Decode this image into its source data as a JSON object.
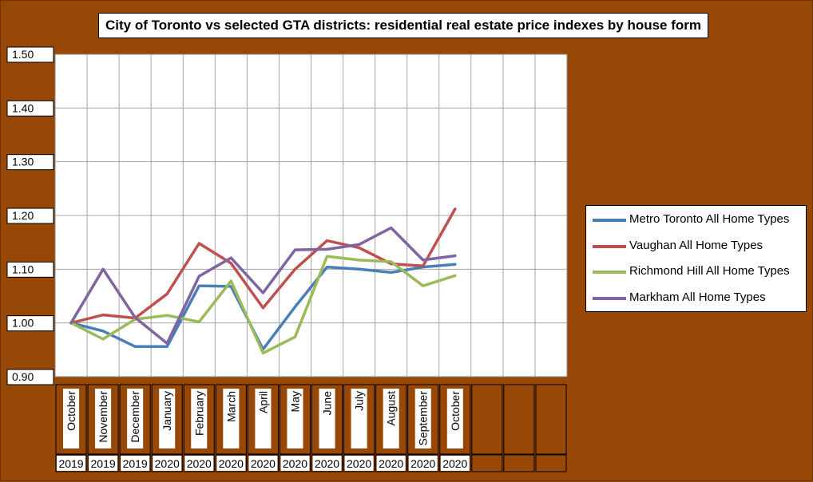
{
  "chart_data": {
    "type": "line",
    "title": "City of Toronto vs selected GTA districts: residential real estate price indexes by house form",
    "months": [
      "October",
      "November",
      "December",
      "January",
      "February",
      "March",
      "April",
      "May",
      "June",
      "July",
      "August",
      "September",
      "October"
    ],
    "years": [
      "2019",
      "2019",
      "2019",
      "2020",
      "2020",
      "2020",
      "2020",
      "2020",
      "2020",
      "2020",
      "2020",
      "2020",
      "2020"
    ],
    "y_ticks": [
      "0.90",
      "1.00",
      "1.10",
      "1.20",
      "1.30",
      "1.40",
      "1.50"
    ],
    "ylim": [
      0.9,
      1.5
    ],
    "category_slots": 16,
    "grid": true,
    "legend_position": "right",
    "series": [
      {
        "name": "Metro Toronto All Home Types",
        "color": "#4a7ebb",
        "values": [
          1.0,
          0.985,
          0.956,
          0.956,
          1.069,
          1.068,
          0.951,
          1.03,
          1.104,
          1.1,
          1.094,
          1.104,
          1.109
        ]
      },
      {
        "name": "Vaughan All Home Types",
        "color": "#c0504d",
        "values": [
          1.0,
          1.015,
          1.009,
          1.054,
          1.148,
          1.111,
          1.028,
          1.1,
          1.153,
          1.14,
          1.11,
          1.106,
          1.212
        ]
      },
      {
        "name": "Richmond Hill All Home Types",
        "color": "#9bbb59",
        "values": [
          1.0,
          0.97,
          1.007,
          1.014,
          1.002,
          1.078,
          0.944,
          0.974,
          1.124,
          1.117,
          1.114,
          1.069,
          1.088
        ]
      },
      {
        "name": "Markham All Home Types",
        "color": "#8064a2",
        "values": [
          1.0,
          1.1,
          1.01,
          0.962,
          1.087,
          1.121,
          1.056,
          1.136,
          1.137,
          1.146,
          1.177,
          1.117,
          1.125
        ]
      }
    ]
  }
}
